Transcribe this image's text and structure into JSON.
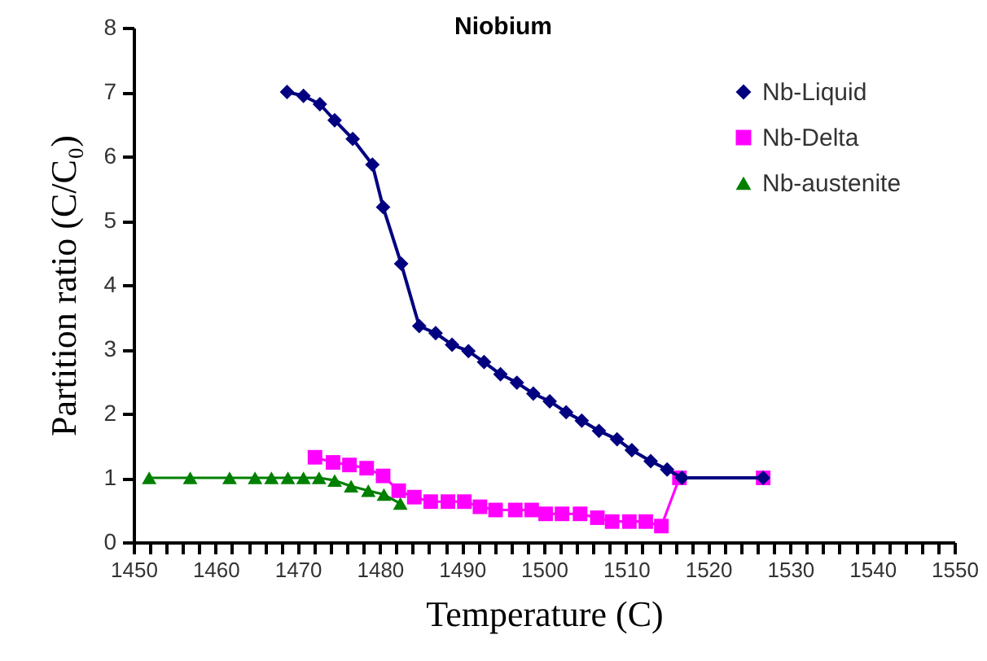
{
  "chart_data": {
    "type": "line",
    "title": "Niobium",
    "xlabel": "Temperature (C)",
    "ylabel": "Partition ratio (C/C₀)",
    "xlim": [
      1450,
      1550
    ],
    "ylim": [
      0,
      8
    ],
    "xticks": [
      1450,
      {
        "value": 1452,
        "label": null
      },
      {
        "value": 1454,
        "label": null
      },
      {
        "value": 1456,
        "label": null
      },
      {
        "value": 1458,
        "label": null
      },
      1460,
      {
        "value": 1462,
        "label": null
      },
      {
        "value": 1464,
        "label": null
      },
      {
        "value": 1466,
        "label": null
      },
      {
        "value": 1468,
        "label": null
      },
      1470,
      {
        "value": 1472,
        "label": null
      },
      {
        "value": 1474,
        "label": null
      },
      {
        "value": 1476,
        "label": null
      },
      {
        "value": 1478,
        "label": null
      },
      1480,
      {
        "value": 1482,
        "label": null
      },
      {
        "value": 1484,
        "label": null
      },
      {
        "value": 1486,
        "label": null
      },
      {
        "value": 1488,
        "label": null
      },
      1490,
      {
        "value": 1492,
        "label": null
      },
      {
        "value": 1494,
        "label": null
      },
      {
        "value": 1496,
        "label": null
      },
      {
        "value": 1498,
        "label": null
      },
      1500,
      {
        "value": 1502,
        "label": null
      },
      {
        "value": 1504,
        "label": null
      },
      {
        "value": 1506,
        "label": null
      },
      {
        "value": 1508,
        "label": null
      },
      1510,
      {
        "value": 1512,
        "label": null
      },
      {
        "value": 1514,
        "label": null
      },
      {
        "value": 1516,
        "label": null
      },
      {
        "value": 1518,
        "label": null
      },
      1520,
      {
        "value": 1522,
        "label": null
      },
      {
        "value": 1524,
        "label": null
      },
      {
        "value": 1526,
        "label": null
      },
      {
        "value": 1528,
        "label": null
      },
      1530,
      {
        "value": 1532,
        "label": null
      },
      {
        "value": 1534,
        "label": null
      },
      {
        "value": 1536,
        "label": null
      },
      {
        "value": 1538,
        "label": null
      },
      1540,
      {
        "value": 1542,
        "label": null
      },
      {
        "value": 1544,
        "label": null
      },
      {
        "value": 1546,
        "label": null
      },
      {
        "value": 1548,
        "label": null
      },
      1550
    ],
    "yticks": [
      0,
      1,
      2,
      3,
      4,
      5,
      6,
      7,
      8
    ],
    "grid": false,
    "legend": "top right",
    "line_style": "solid",
    "series": [
      {
        "name": "Nb-Liquid",
        "color": "#000080",
        "marker": "diamond",
        "x": [
          1468.7,
          1470.7,
          1472.7,
          1474.5,
          1476.7,
          1479.1,
          1480.4,
          1482.6,
          1484.8,
          1486.8,
          1488.8,
          1490.8,
          1492.7,
          1494.7,
          1496.7,
          1498.7,
          1500.7,
          1502.7,
          1504.6,
          1506.7,
          1508.9,
          1510.7,
          1513.0,
          1515.0,
          1516.8,
          1526.7
        ],
        "values": [
          7.0,
          6.94,
          6.81,
          6.56,
          6.27,
          5.87,
          5.21,
          4.33,
          3.36,
          3.25,
          3.07,
          2.97,
          2.8,
          2.61,
          2.48,
          2.31,
          2.19,
          2.02,
          1.89,
          1.73,
          1.6,
          1.43,
          1.26,
          1.13,
          1.0,
          1.0
        ]
      },
      {
        "name": "Nb-Delta",
        "color": "#ff00ff",
        "marker": "square",
        "x": [
          1472.1,
          1474.3,
          1476.3,
          1478.4,
          1480.4,
          1482.3,
          1484.2,
          1486.2,
          1488.3,
          1490.3,
          1492.2,
          1494.1,
          1496.5,
          1498.5,
          1500.2,
          1502.2,
          1504.4,
          1506.5,
          1508.3,
          1510.4,
          1512.4,
          1514.3,
          1516.5,
          1526.7
        ],
        "values": [
          1.32,
          1.24,
          1.2,
          1.15,
          1.03,
          0.8,
          0.7,
          0.63,
          0.63,
          0.63,
          0.55,
          0.5,
          0.5,
          0.5,
          0.44,
          0.44,
          0.44,
          0.38,
          0.32,
          0.32,
          0.32,
          0.25,
          1.0,
          1.0
        ]
      },
      {
        "name": "Nb-austenite",
        "color": "#008000",
        "marker": "triangle",
        "x": [
          1451.9,
          1456.9,
          1461.7,
          1464.8,
          1466.8,
          1468.8,
          1470.7,
          1472.6,
          1474.5,
          1476.5,
          1478.6,
          1480.5,
          1482.5
        ],
        "values": [
          1.0,
          1.0,
          1.0,
          1.0,
          1.0,
          1.0,
          1.0,
          1.0,
          0.96,
          0.87,
          0.8,
          0.74,
          0.6
        ]
      }
    ]
  }
}
